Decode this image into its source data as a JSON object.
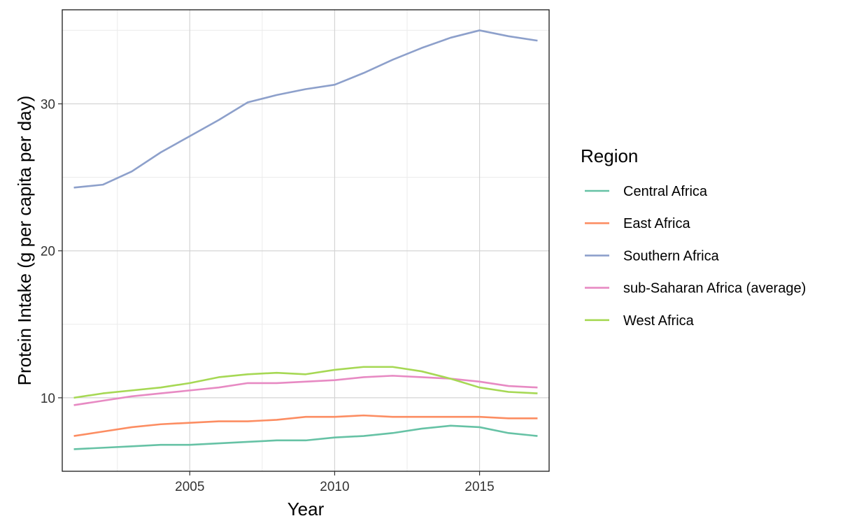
{
  "chart_data": {
    "type": "line",
    "xlabel": "Year",
    "ylabel": "Protein Intake (g per capita per day)",
    "xlim": [
      2000.6,
      2017.4
    ],
    "ylim": [
      5.0,
      36.4
    ],
    "x_ticks": [
      2005,
      2010,
      2015
    ],
    "x_tick_labels": [
      "2005",
      "2010",
      "2015"
    ],
    "x_minor_ticks": [
      2002.5,
      2007.5,
      2012.5,
      2017.5
    ],
    "y_ticks": [
      10,
      20,
      30
    ],
    "y_tick_labels": [
      "10",
      "20",
      "30"
    ],
    "y_minor_ticks": [
      15,
      25,
      35
    ],
    "grid": true,
    "legend": {
      "title": "Region",
      "placement": "right"
    },
    "x": [
      2001,
      2002,
      2003,
      2004,
      2005,
      2006,
      2007,
      2008,
      2009,
      2010,
      2011,
      2012,
      2013,
      2014,
      2015,
      2016,
      2017
    ],
    "series": [
      {
        "name": "Central Africa",
        "color": "#66c2a5",
        "values": [
          6.5,
          6.6,
          6.7,
          6.8,
          6.8,
          6.9,
          7.0,
          7.1,
          7.1,
          7.3,
          7.4,
          7.6,
          7.9,
          8.1,
          8.0,
          7.6,
          7.4
        ]
      },
      {
        "name": "East Africa",
        "color": "#fc8d62",
        "values": [
          7.4,
          7.7,
          8.0,
          8.2,
          8.3,
          8.4,
          8.4,
          8.5,
          8.7,
          8.7,
          8.8,
          8.7,
          8.7,
          8.7,
          8.7,
          8.6,
          8.6
        ]
      },
      {
        "name": "Southern Africa",
        "color": "#8da0cb",
        "values": [
          24.3,
          24.5,
          25.4,
          26.7,
          27.8,
          28.9,
          30.1,
          30.6,
          31.0,
          31.3,
          32.1,
          33.0,
          33.8,
          34.5,
          35.0,
          34.6,
          34.3
        ]
      },
      {
        "name": "sub-Saharan Africa (average)",
        "color": "#e78ac3",
        "values": [
          9.5,
          9.8,
          10.1,
          10.3,
          10.5,
          10.7,
          11.0,
          11.0,
          11.1,
          11.2,
          11.4,
          11.5,
          11.4,
          11.3,
          11.1,
          10.8,
          10.7
        ]
      },
      {
        "name": "West Africa",
        "color": "#a6d854",
        "values": [
          10.0,
          10.3,
          10.5,
          10.7,
          11.0,
          11.4,
          11.6,
          11.7,
          11.6,
          11.9,
          12.1,
          12.1,
          11.8,
          11.3,
          10.7,
          10.4,
          10.3
        ]
      }
    ]
  }
}
